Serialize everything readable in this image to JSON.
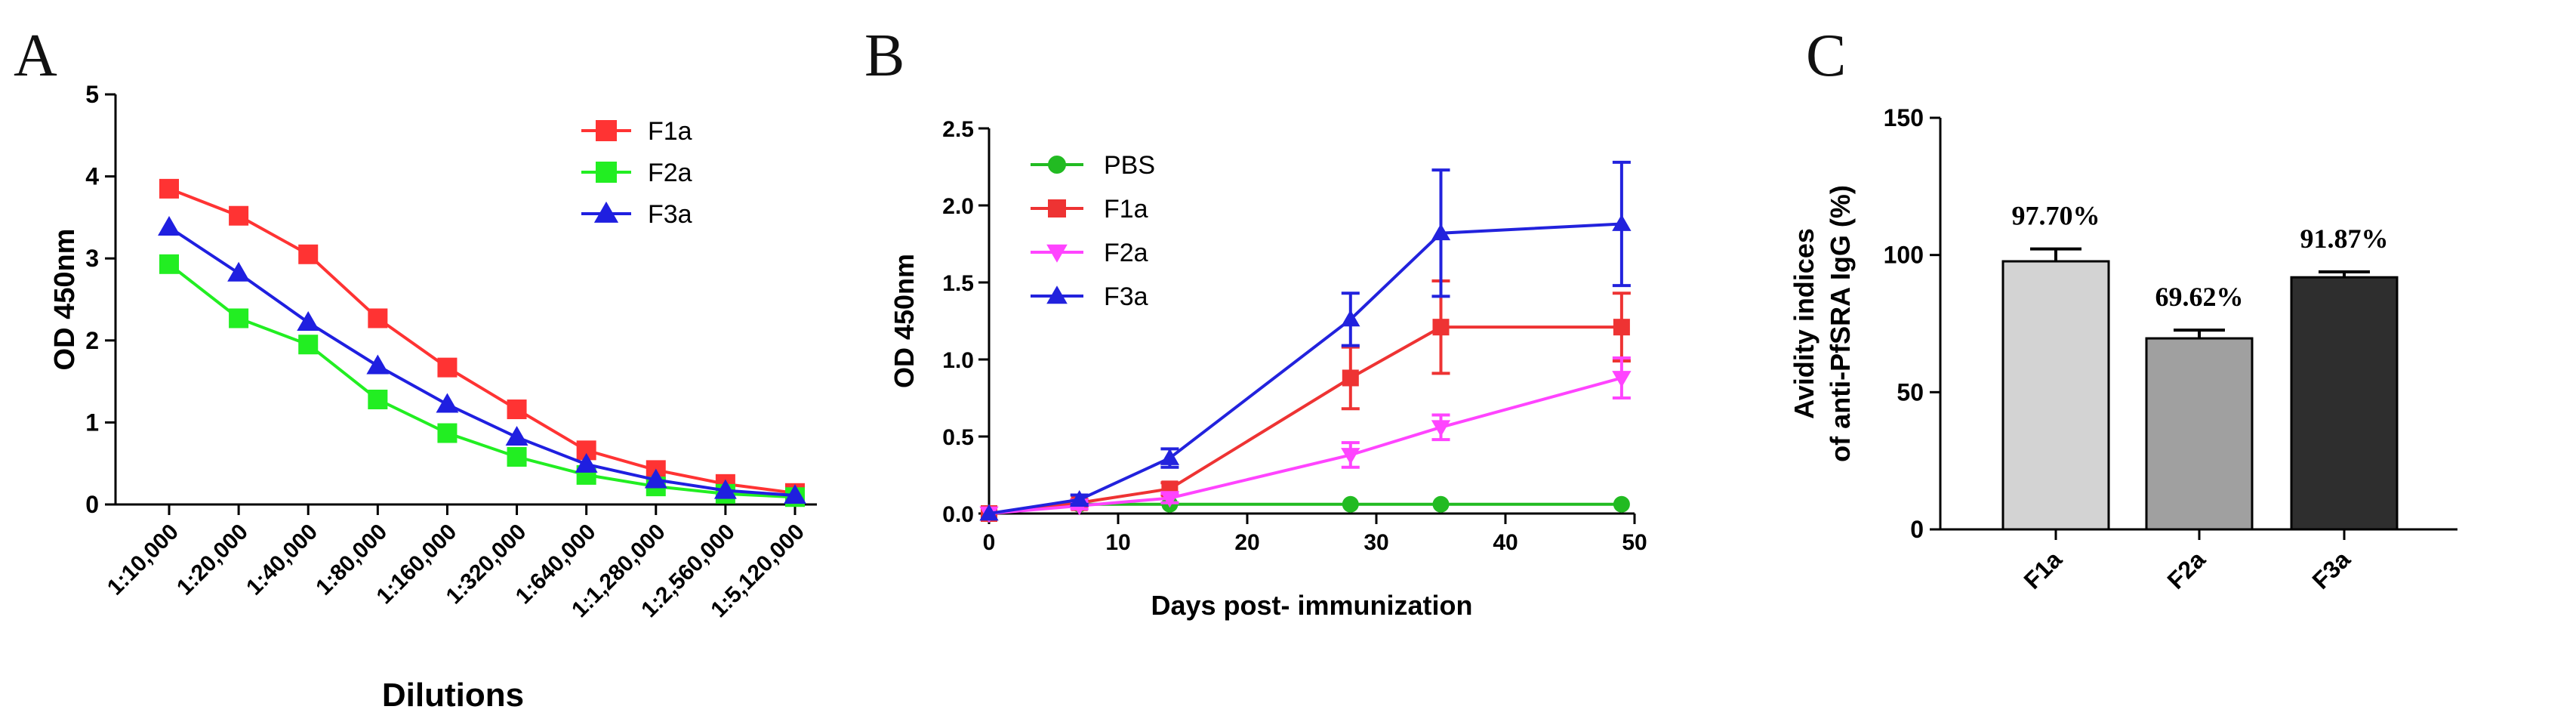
{
  "panels": [
    {
      "letter": "A"
    },
    {
      "letter": "B"
    },
    {
      "letter": "C"
    }
  ],
  "chart_data": [
    {
      "type": "line",
      "panel": "A",
      "xlabel": "Dilutions",
      "ylabel": "OD 450nm",
      "ylim": [
        0,
        5
      ],
      "yticks": [
        "0",
        "1",
        "2",
        "3",
        "4",
        "5"
      ],
      "categories": [
        "1:10,000",
        "1:20,000",
        "1:40,000",
        "1:80,000",
        "1:160,000",
        "1:320,000",
        "1:640,000",
        "1:1,280,000",
        "1:2,560,000",
        "1:5,120,000"
      ],
      "series": [
        {
          "name": "F1a",
          "marker": "square",
          "color": "#ff3333",
          "values": [
            3.85,
            3.52,
            3.05,
            2.27,
            1.67,
            1.16,
            0.66,
            0.42,
            0.25,
            0.14
          ]
        },
        {
          "name": "F2a",
          "marker": "square",
          "color": "#22ee22",
          "values": [
            2.93,
            2.27,
            1.95,
            1.28,
            0.87,
            0.58,
            0.36,
            0.22,
            0.13,
            0.09
          ]
        },
        {
          "name": "F3a",
          "marker": "triangle",
          "color": "#1f1fe0",
          "values": [
            3.38,
            2.82,
            2.22,
            1.69,
            1.22,
            0.82,
            0.49,
            0.3,
            0.17,
            0.11
          ]
        }
      ],
      "legend": "top-right"
    },
    {
      "type": "line",
      "panel": "B",
      "xlabel": "Days post- immunization",
      "ylabel": "OD 450nm",
      "xlim": [
        0,
        50
      ],
      "ylim": [
        0,
        2.5
      ],
      "xticks": [
        "0",
        "10",
        "20",
        "30",
        "40",
        "50"
      ],
      "yticks": [
        "0.0",
        "0.5",
        "1.0",
        "1.5",
        "2.0",
        "2.5"
      ],
      "x": [
        0,
        7,
        14,
        28,
        35,
        49
      ],
      "series": [
        {
          "name": "PBS",
          "marker": "circle",
          "color": "#22bb22",
          "values": [
            0.0,
            0.06,
            0.06,
            0.06,
            0.06,
            0.06
          ],
          "errors": [
            0,
            0,
            0,
            0,
            0,
            0
          ]
        },
        {
          "name": "F1a",
          "marker": "square",
          "color": "#ee3333",
          "values": [
            0.0,
            0.07,
            0.16,
            0.88,
            1.21,
            1.21
          ],
          "errors": [
            0,
            0.02,
            0.04,
            0.2,
            0.3,
            0.22
          ]
        },
        {
          "name": "F2a",
          "marker": "triangle-down",
          "color": "#ff44ff",
          "values": [
            0.0,
            0.05,
            0.1,
            0.38,
            0.56,
            0.88
          ],
          "errors": [
            0,
            0.02,
            0.03,
            0.08,
            0.08,
            0.13
          ]
        },
        {
          "name": "F3a",
          "marker": "triangle",
          "color": "#2222dd",
          "values": [
            0.0,
            0.09,
            0.36,
            1.26,
            1.82,
            1.88
          ],
          "errors": [
            0,
            0.03,
            0.06,
            0.17,
            0.41,
            0.4
          ]
        }
      ],
      "legend": "top-left"
    },
    {
      "type": "bar",
      "panel": "C",
      "xlabel": "",
      "ylabel": "Avidity indices of anti-PfSRA IgG (%)",
      "ylabel_lines": [
        "Avidity indices",
        "of anti-PfSRA IgG (%)"
      ],
      "ylim": [
        0,
        150
      ],
      "yticks": [
        "0",
        "50",
        "100",
        "150"
      ],
      "categories": [
        "F1a",
        "F2a",
        "F3a"
      ],
      "values": [
        97.7,
        69.62,
        91.87
      ],
      "errors": [
        4.5,
        3.0,
        2.0
      ],
      "labels": [
        "97.70%",
        "69.62%",
        "91.87%"
      ],
      "colors": [
        "#d3d3d3",
        "#a0a0a0",
        "#2e2e2e"
      ]
    }
  ]
}
